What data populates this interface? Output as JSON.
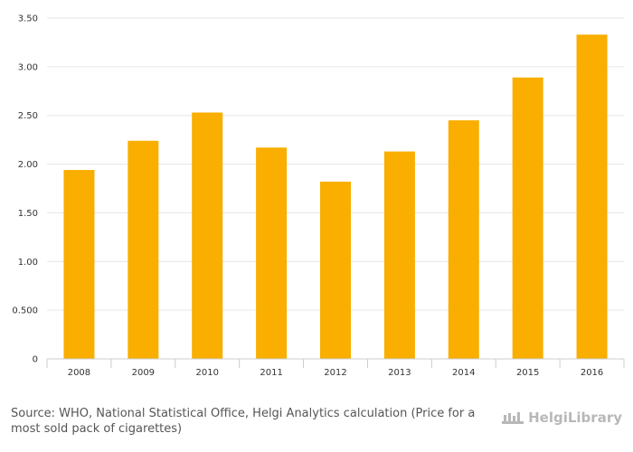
{
  "chart_data": {
    "type": "bar",
    "categories": [
      "2008",
      "2009",
      "2010",
      "2011",
      "2012",
      "2013",
      "2014",
      "2015",
      "2016"
    ],
    "values": [
      1.94,
      2.24,
      2.53,
      2.17,
      1.82,
      2.13,
      2.45,
      2.89,
      3.33
    ],
    "ylim": [
      0,
      3.5
    ],
    "yticks": [
      0,
      0.5,
      1.0,
      1.5,
      2.0,
      2.5,
      3.0,
      3.5
    ],
    "ytick_labels": [
      "0",
      "0.500",
      "1.00",
      "1.50",
      "2.00",
      "2.50",
      "3.00",
      "3.50"
    ],
    "grid": true,
    "colors": {
      "bar": "#f9ae00",
      "grid": "#e6e6e6",
      "axis": "#cccccc"
    }
  },
  "footer": {
    "source": "Source: WHO, National Statistical Office, Helgi Analytics calculation (Price for a most sold pack of cigarettes)"
  },
  "brand": {
    "name": "HelgiLibrary"
  }
}
